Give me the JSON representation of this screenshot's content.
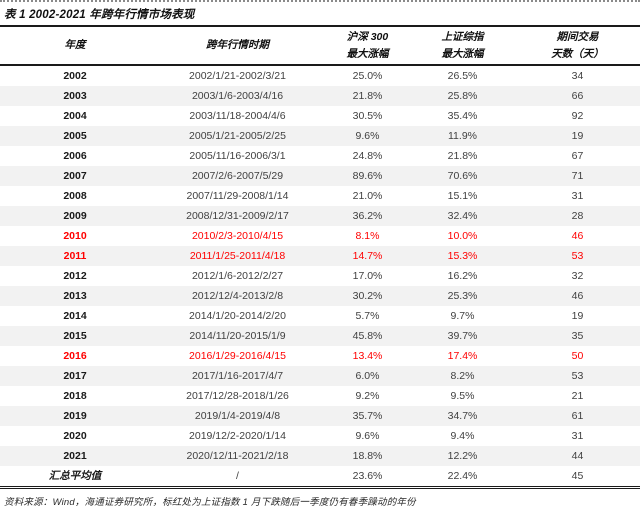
{
  "title": "表 1 2002-2021 年跨年行情市场表现",
  "table": {
    "headers": {
      "year": "年度",
      "period": "跨年行情时期",
      "hs300": [
        "沪深 300",
        "最大涨幅"
      ],
      "szzz": [
        "上证综指",
        "最大涨幅"
      ],
      "days": [
        "期间交易",
        "天数（天）"
      ]
    },
    "rows": [
      {
        "year": "2002",
        "period": "2002/1/21-2002/3/21",
        "hs300": "25.0%",
        "szzz": "26.5%",
        "days": "34",
        "red": false
      },
      {
        "year": "2003",
        "period": "2003/1/6-2003/4/16",
        "hs300": "21.8%",
        "szzz": "25.8%",
        "days": "66",
        "red": false
      },
      {
        "year": "2004",
        "period": "2003/11/18-2004/4/6",
        "hs300": "30.5%",
        "szzz": "35.4%",
        "days": "92",
        "red": false
      },
      {
        "year": "2005",
        "period": "2005/1/21-2005/2/25",
        "hs300": "9.6%",
        "szzz": "11.9%",
        "days": "19",
        "red": false
      },
      {
        "year": "2006",
        "period": "2005/11/16-2006/3/1",
        "hs300": "24.8%",
        "szzz": "21.8%",
        "days": "67",
        "red": false
      },
      {
        "year": "2007",
        "period": "2007/2/6-2007/5/29",
        "hs300": "89.6%",
        "szzz": "70.6%",
        "days": "71",
        "red": false
      },
      {
        "year": "2008",
        "period": "2007/11/29-2008/1/14",
        "hs300": "21.0%",
        "szzz": "15.1%",
        "days": "31",
        "red": false
      },
      {
        "year": "2009",
        "period": "2008/12/31-2009/2/17",
        "hs300": "36.2%",
        "szzz": "32.4%",
        "days": "28",
        "red": false
      },
      {
        "year": "2010",
        "period": "2010/2/3-2010/4/15",
        "hs300": "8.1%",
        "szzz": "10.0%",
        "days": "46",
        "red": true
      },
      {
        "year": "2011",
        "period": "2011/1/25-2011/4/18",
        "hs300": "14.7%",
        "szzz": "15.3%",
        "days": "53",
        "red": true
      },
      {
        "year": "2012",
        "period": "2012/1/6-2012/2/27",
        "hs300": "17.0%",
        "szzz": "16.2%",
        "days": "32",
        "red": false
      },
      {
        "year": "2013",
        "period": "2012/12/4-2013/2/8",
        "hs300": "30.2%",
        "szzz": "25.3%",
        "days": "46",
        "red": false
      },
      {
        "year": "2014",
        "period": "2014/1/20-2014/2/20",
        "hs300": "5.7%",
        "szzz": "9.7%",
        "days": "19",
        "red": false
      },
      {
        "year": "2015",
        "period": "2014/11/20-2015/1/9",
        "hs300": "45.8%",
        "szzz": "39.7%",
        "days": "35",
        "red": false
      },
      {
        "year": "2016",
        "period": "2016/1/29-2016/4/15",
        "hs300": "13.4%",
        "szzz": "17.4%",
        "days": "50",
        "red": true
      },
      {
        "year": "2017",
        "period": "2017/1/16-2017/4/7",
        "hs300": "6.0%",
        "szzz": "8.2%",
        "days": "53",
        "red": false
      },
      {
        "year": "2018",
        "period": "2017/12/28-2018/1/26",
        "hs300": "9.2%",
        "szzz": "9.5%",
        "days": "21",
        "red": false
      },
      {
        "year": "2019",
        "period": "2019/1/4-2019/4/8",
        "hs300": "35.7%",
        "szzz": "34.7%",
        "days": "61",
        "red": false
      },
      {
        "year": "2020",
        "period": "2019/12/2-2020/1/14",
        "hs300": "9.6%",
        "szzz": "9.4%",
        "days": "31",
        "red": false
      },
      {
        "year": "2021",
        "period": "2020/12/11-2021/2/18",
        "hs300": "18.8%",
        "szzz": "12.2%",
        "days": "44",
        "red": false
      },
      {
        "year": "汇总平均值",
        "period": "/",
        "hs300": "23.6%",
        "szzz": "22.4%",
        "days": "45",
        "red": false,
        "summary": true
      }
    ]
  },
  "source_note": "资料来源：Wind，海通证券研究所，标红处为上证指数 1 月下跌随后一季度仍有春季躁动的年份",
  "colors": {
    "highlight_red": "#ff0000",
    "row_alt_bg": "#f2f2f2",
    "rule_black": "#1a1a1a"
  }
}
